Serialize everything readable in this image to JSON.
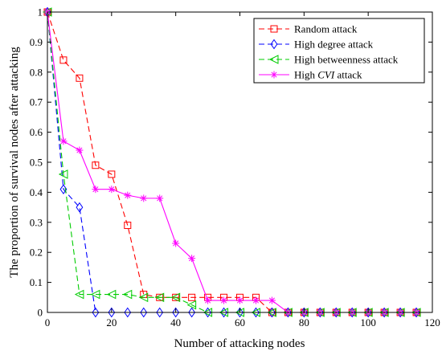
{
  "chart_data": {
    "type": "line",
    "xlabel": "Number of attacking nodes",
    "ylabel": "The proportion of survival nodes after attacking",
    "xlim": [
      0,
      120
    ],
    "ylim": [
      0,
      1
    ],
    "x_ticks": [
      "0",
      "20",
      "40",
      "60",
      "80",
      "100",
      "120"
    ],
    "y_ticks": [
      "0",
      "0.1",
      "0.2",
      "0.3",
      "0.4",
      "0.5",
      "0.6",
      "0.7",
      "0.8",
      "0.9",
      "1"
    ],
    "grid": false,
    "legend_position": "top-right",
    "series": [
      {
        "name": "Random attack",
        "color": "#ff0000",
        "line_style": "dashed",
        "marker": "square",
        "x": [
          0,
          5,
          10,
          15,
          20,
          25,
          30,
          35,
          40,
          45,
          50,
          55,
          60,
          65,
          70,
          75,
          80,
          85,
          90,
          95,
          100,
          105,
          110,
          115
        ],
        "y": [
          1,
          0.84,
          0.78,
          0.49,
          0.46,
          0.29,
          0.06,
          0.05,
          0.05,
          0.05,
          0.05,
          0.05,
          0.05,
          0.05,
          0,
          0,
          0,
          0,
          0,
          0,
          0,
          0,
          0,
          0
        ]
      },
      {
        "name": "High degree attack",
        "color": "#0000ff",
        "line_style": "dashed",
        "marker": "diamond",
        "x": [
          0,
          5,
          10,
          15,
          20,
          25,
          30,
          35,
          40,
          45,
          50,
          55,
          60,
          65,
          70,
          75,
          80,
          85,
          90,
          95,
          100,
          105,
          110,
          115
        ],
        "y": [
          1,
          0.41,
          0.35,
          0,
          0,
          0,
          0,
          0,
          0,
          0,
          0,
          0,
          0,
          0,
          0,
          0,
          0,
          0,
          0,
          0,
          0,
          0,
          0,
          0
        ]
      },
      {
        "name": "High betweenness attack",
        "color": "#00cc00",
        "line_style": "dashed",
        "marker": "triangle-left",
        "x": [
          0,
          5,
          10,
          15,
          20,
          25,
          30,
          35,
          40,
          45,
          50,
          55,
          60,
          65,
          70,
          75,
          80,
          85,
          90,
          95,
          100,
          105,
          110,
          115
        ],
        "y": [
          1,
          0.46,
          0.06,
          0.06,
          0.06,
          0.06,
          0.05,
          0.05,
          0.05,
          0.025,
          0,
          0,
          0,
          0,
          0,
          0,
          0,
          0,
          0,
          0,
          0,
          0,
          0,
          0
        ]
      },
      {
        "name_parts": [
          "High ",
          "CVI",
          " attack"
        ],
        "name": "High CVI attack",
        "color": "#ff00ff",
        "line_style": "solid",
        "marker": "asterisk",
        "x": [
          0,
          5,
          10,
          15,
          20,
          25,
          30,
          35,
          40,
          45,
          50,
          55,
          60,
          65,
          70,
          75,
          80,
          85,
          90,
          95,
          100,
          105,
          110,
          115
        ],
        "y": [
          1,
          0.57,
          0.54,
          0.41,
          0.41,
          0.39,
          0.38,
          0.38,
          0.23,
          0.18,
          0.04,
          0.04,
          0.04,
          0.04,
          0.04,
          0,
          0,
          0,
          0,
          0,
          0,
          0,
          0,
          0
        ]
      }
    ]
  }
}
